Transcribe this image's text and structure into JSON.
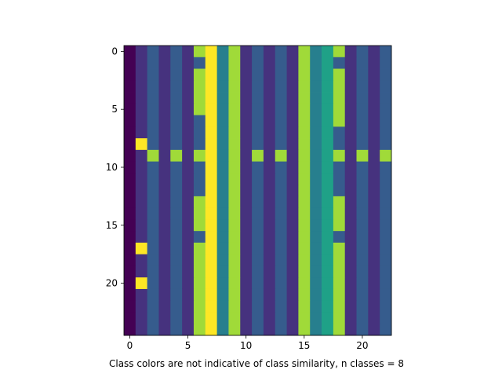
{
  "chart_data": {
    "type": "heatmap",
    "title": "",
    "xlabel": "Class colors are not indicative of class similarity, n classes = 8",
    "ylabel": "",
    "x_ticks": [
      0,
      5,
      10,
      15,
      20
    ],
    "y_ticks": [
      0,
      5,
      10,
      15,
      20
    ],
    "xlim": [
      -0.5,
      22.5
    ],
    "ylim": [
      24.5,
      -0.5
    ],
    "n_rows": 25,
    "n_cols": 23,
    "n_classes": 8,
    "colormap": "viridis",
    "class_colors": [
      "#440154",
      "#46327e",
      "#365c8d",
      "#277f8e",
      "#1fa187",
      "#4ac16d",
      "#a0da39",
      "#fde725"
    ],
    "base_row": [
      0,
      1,
      2,
      1,
      2,
      1,
      6,
      7,
      3,
      6,
      1,
      2,
      1,
      2,
      1,
      6,
      3,
      4,
      6,
      1,
      2,
      1,
      2
    ],
    "overrides": [
      {
        "rows": [
          1,
          6,
          7,
          8,
          10,
          11,
          12,
          16
        ],
        "col": 6,
        "value": 2
      },
      {
        "rows": [
          1,
          7,
          8,
          10,
          11,
          12,
          16
        ],
        "col": 18,
        "value": 2
      },
      {
        "rows": [
          8,
          17,
          20
        ],
        "col": 1,
        "value": 7
      },
      {
        "rows": [
          9
        ],
        "col": 2,
        "value": 6
      },
      {
        "rows": [
          9
        ],
        "col": 4,
        "value": 6
      },
      {
        "rows": [
          9
        ],
        "col": 11,
        "value": 6
      },
      {
        "rows": [
          9
        ],
        "col": 13,
        "value": 6
      },
      {
        "rows": [
          9
        ],
        "col": 20,
        "value": 6
      },
      {
        "rows": [
          9
        ],
        "col": 22,
        "value": 6
      }
    ]
  }
}
